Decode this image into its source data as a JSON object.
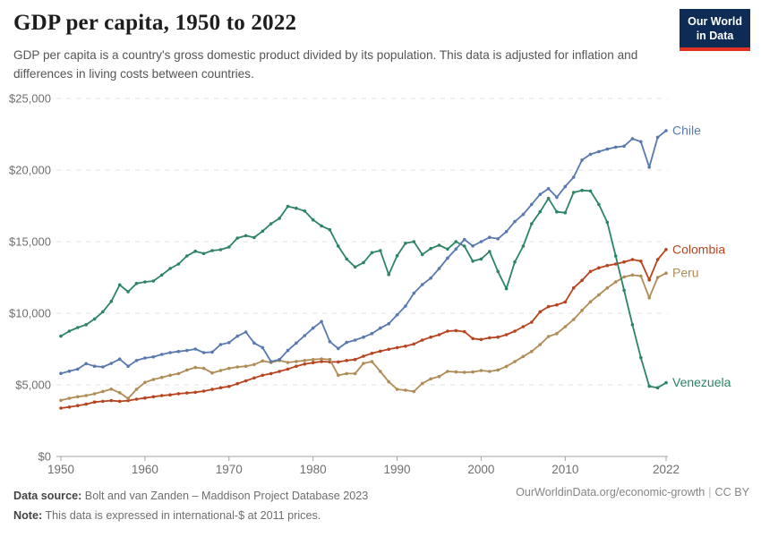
{
  "header": {
    "title": "GDP per capita, 1950 to 2022",
    "subtitle": "GDP per capita is a country's gross domestic product divided by its population. This data is adjusted for inflation and differences in living costs between countries.",
    "logo": {
      "line1": "Our World",
      "line2": "in Data",
      "bg_color": "#0d2b54",
      "stripe_color": "#e03223"
    }
  },
  "footer": {
    "datasource_label": "Data source:",
    "datasource_text": " Bolt and van Zanden – Maddison Project Database 2023",
    "note_label": "Note:",
    "note_text": " This data is expressed in international-$ at 2011 prices.",
    "link_text": "OurWorldinData.org/economic-growth",
    "separator": "|",
    "license_text": "CC BY"
  },
  "chart_data": {
    "type": "line",
    "title": "GDP per capita, 1950 to 2022",
    "xlabel": "",
    "ylabel": "",
    "x_range": [
      1950,
      2022
    ],
    "x_step": 1,
    "ylim": [
      0,
      25000
    ],
    "grid": "horizontal-dashed",
    "legend": "end-of-line-labels",
    "axis_color": "#a3a3a3",
    "grid_color": "#e0e0e0",
    "tick_label_color": "#6e6e6e",
    "xticks": [
      {
        "value": 1950,
        "label": "1950"
      },
      {
        "value": 1960,
        "label": "1960"
      },
      {
        "value": 1970,
        "label": "1970"
      },
      {
        "value": 1980,
        "label": "1980"
      },
      {
        "value": 1990,
        "label": "1990"
      },
      {
        "value": 2000,
        "label": "2000"
      },
      {
        "value": 2010,
        "label": "2010"
      },
      {
        "value": 2022,
        "label": "2022"
      }
    ],
    "yticks": [
      {
        "value": 0,
        "label": "$0"
      },
      {
        "value": 5000,
        "label": "$5,000"
      },
      {
        "value": 10000,
        "label": "$10,000"
      },
      {
        "value": 15000,
        "label": "$15,000"
      },
      {
        "value": 20000,
        "label": "$20,000"
      },
      {
        "value": 25000,
        "label": "$25,000"
      }
    ],
    "series": [
      {
        "name": "Colombia",
        "color": "#B8441F",
        "values": [
          3375,
          3450,
          3550,
          3650,
          3800,
          3850,
          3900,
          3850,
          3900,
          4000,
          4080,
          4170,
          4250,
          4300,
          4380,
          4430,
          4480,
          4560,
          4680,
          4800,
          4890,
          5080,
          5280,
          5480,
          5670,
          5790,
          5940,
          6100,
          6300,
          6450,
          6550,
          6625,
          6600,
          6600,
          6700,
          6770,
          7000,
          7200,
          7350,
          7480,
          7600,
          7700,
          7850,
          8125,
          8330,
          8500,
          8750,
          8790,
          8710,
          8230,
          8170,
          8290,
          8330,
          8500,
          8750,
          9060,
          9375,
          10100,
          10460,
          10580,
          10790,
          11770,
          12300,
          12920,
          13170,
          13330,
          13440,
          13580,
          13750,
          13640,
          12330,
          13750,
          14450
        ]
      },
      {
        "name": "Peru",
        "color": "#AF8C55",
        "values": [
          3920,
          4060,
          4170,
          4250,
          4375,
          4540,
          4700,
          4450,
          4050,
          4690,
          5170,
          5375,
          5520,
          5670,
          5790,
          6040,
          6210,
          6150,
          5830,
          6000,
          6150,
          6250,
          6300,
          6420,
          6670,
          6560,
          6700,
          6560,
          6630,
          6700,
          6770,
          6810,
          6770,
          5670,
          5790,
          5790,
          6500,
          6625,
          5940,
          5210,
          4690,
          4625,
          4540,
          5100,
          5420,
          5580,
          5940,
          5900,
          5875,
          5900,
          6000,
          5940,
          6040,
          6290,
          6625,
          6980,
          7330,
          7810,
          8375,
          8580,
          9060,
          9560,
          10200,
          10800,
          11290,
          11770,
          12190,
          12540,
          12670,
          12600,
          11080,
          12500,
          12800
        ]
      },
      {
        "name": "Venezuela",
        "color": "#2C8465",
        "values": [
          8400,
          8750,
          9000,
          9200,
          9600,
          10100,
          10830,
          11980,
          11500,
          12080,
          12190,
          12250,
          12670,
          13125,
          13440,
          14000,
          14330,
          14170,
          14375,
          14440,
          14625,
          15250,
          15420,
          15290,
          15730,
          16250,
          16625,
          17460,
          17330,
          17140,
          16520,
          16100,
          15830,
          14690,
          13790,
          13230,
          13540,
          14230,
          14375,
          12700,
          14020,
          14890,
          15000,
          14100,
          14520,
          14750,
          14480,
          15000,
          14690,
          13640,
          13790,
          14310,
          12920,
          11710,
          13580,
          14690,
          16250,
          17080,
          18020,
          17080,
          17020,
          18440,
          18580,
          18540,
          17600,
          16350,
          14000,
          11600,
          9200,
          6900,
          4900,
          4800,
          5150
        ]
      },
      {
        "name": "Chile",
        "color": "#5879B0",
        "values": [
          5800,
          5950,
          6100,
          6480,
          6300,
          6250,
          6500,
          6800,
          6300,
          6700,
          6875,
          6950,
          7125,
          7250,
          7330,
          7400,
          7500,
          7250,
          7290,
          7810,
          7950,
          8400,
          8690,
          7920,
          7600,
          6625,
          6770,
          7400,
          7920,
          8440,
          8960,
          9420,
          8020,
          7540,
          7960,
          8125,
          8330,
          8580,
          8960,
          9270,
          9890,
          10500,
          11400,
          12000,
          12450,
          13125,
          13850,
          14480,
          15150,
          14700,
          15000,
          15300,
          15200,
          15700,
          16400,
          16900,
          17600,
          18300,
          18700,
          18100,
          18850,
          19500,
          20700,
          21100,
          21290,
          21460,
          21600,
          21670,
          22190,
          21980,
          20200,
          22290,
          22750
        ]
      }
    ]
  }
}
